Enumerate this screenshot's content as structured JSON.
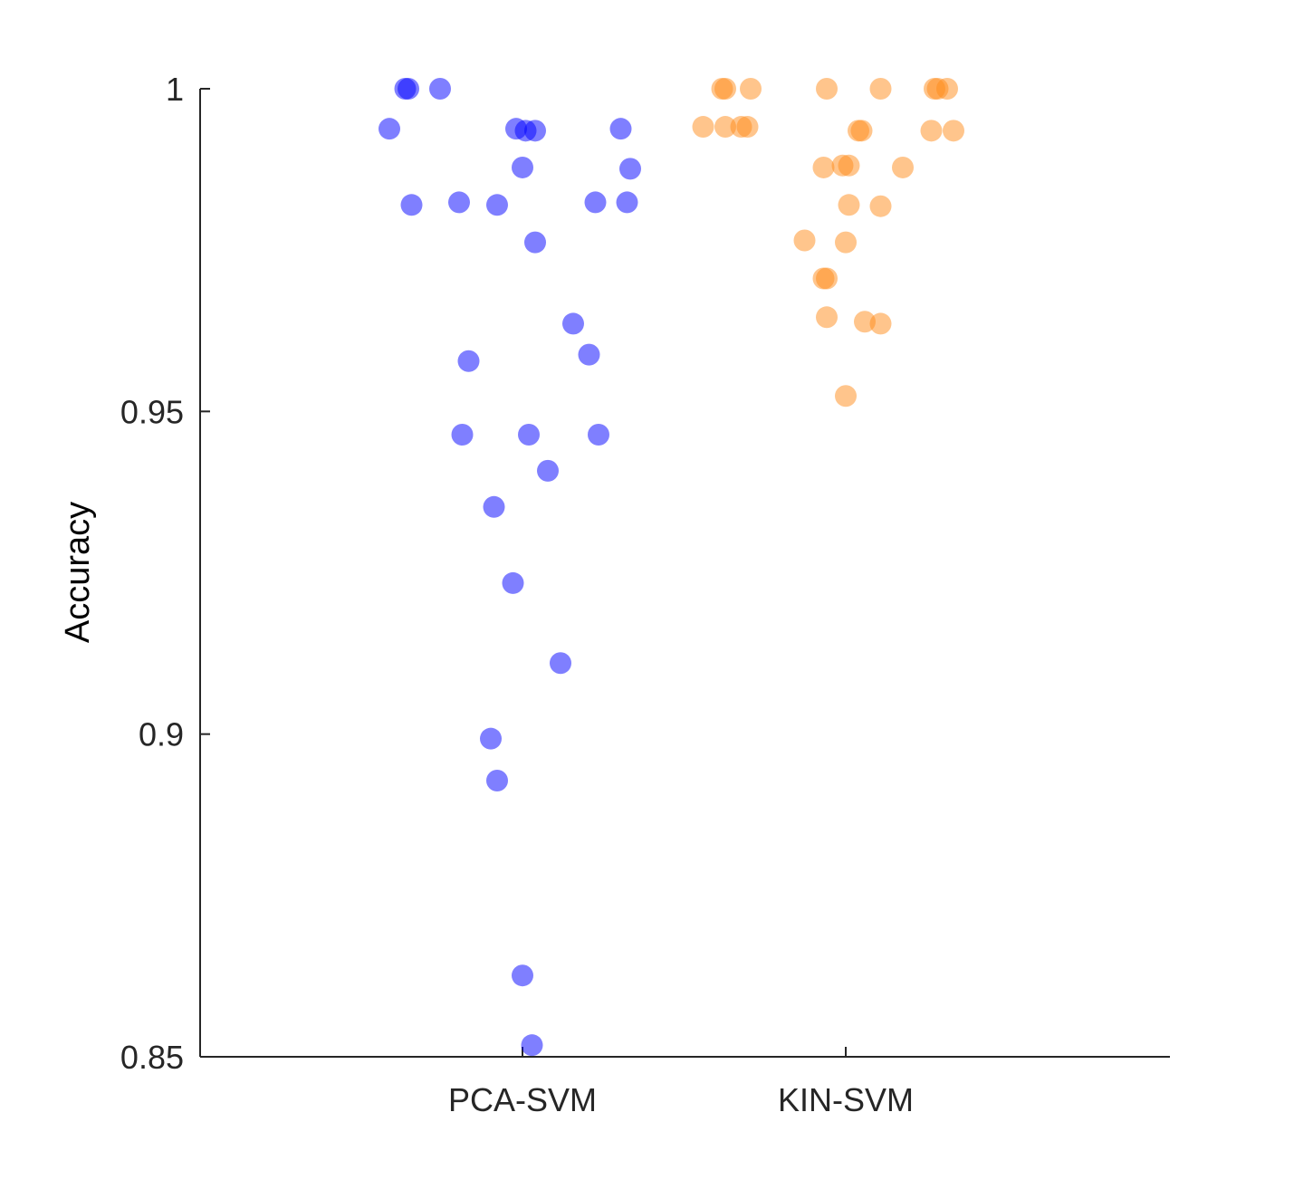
{
  "chart_data": {
    "type": "scatter",
    "title": "",
    "xlabel": "",
    "ylabel": "Accuracy",
    "categories": [
      "PCA-SVM",
      "KIN-SVM"
    ],
    "ylim": [
      0.85,
      1.0
    ],
    "yticks": [
      0.85,
      0.9,
      0.95,
      1
    ],
    "ytick_labels": [
      "0.85",
      "0.9",
      "0.95",
      "1"
    ],
    "grid": false,
    "legend": "none",
    "series": [
      {
        "category": "PCA-SVM",
        "color": "#0000ff",
        "points": [
          {
            "jitter": -0.37,
            "y": 1.0
          },
          {
            "jitter": -0.36,
            "y": 1.0
          },
          {
            "jitter": -0.26,
            "y": 1.0
          },
          {
            "jitter": -0.42,
            "y": 0.9938
          },
          {
            "jitter": -0.02,
            "y": 0.9938
          },
          {
            "jitter": 0.01,
            "y": 0.9935
          },
          {
            "jitter": 0.04,
            "y": 0.9935
          },
          {
            "jitter": 0.31,
            "y": 0.9938
          },
          {
            "jitter": 0.0,
            "y": 0.9878
          },
          {
            "jitter": 0.34,
            "y": 0.9876
          },
          {
            "jitter": -0.35,
            "y": 0.982
          },
          {
            "jitter": -0.2,
            "y": 0.9824
          },
          {
            "jitter": -0.08,
            "y": 0.982
          },
          {
            "jitter": 0.23,
            "y": 0.9824
          },
          {
            "jitter": 0.33,
            "y": 0.9824
          },
          {
            "jitter": 0.04,
            "y": 0.9762
          },
          {
            "jitter": 0.16,
            "y": 0.9636
          },
          {
            "jitter": 0.21,
            "y": 0.9588
          },
          {
            "jitter": -0.17,
            "y": 0.9578
          },
          {
            "jitter": -0.19,
            "y": 0.9464
          },
          {
            "jitter": 0.02,
            "y": 0.9464
          },
          {
            "jitter": 0.24,
            "y": 0.9464
          },
          {
            "jitter": 0.08,
            "y": 0.9408
          },
          {
            "jitter": -0.09,
            "y": 0.9352
          },
          {
            "jitter": -0.03,
            "y": 0.9234
          },
          {
            "jitter": 0.12,
            "y": 0.911
          },
          {
            "jitter": -0.1,
            "y": 0.8993
          },
          {
            "jitter": -0.08,
            "y": 0.8928
          },
          {
            "jitter": 0.0,
            "y": 0.8626
          },
          {
            "jitter": 0.03,
            "y": 0.8518
          }
        ]
      },
      {
        "category": "KIN-SVM",
        "color": "#ff8c1a",
        "points": [
          {
            "jitter": -0.39,
            "y": 1.0
          },
          {
            "jitter": -0.38,
            "y": 1.0
          },
          {
            "jitter": -0.3,
            "y": 1.0
          },
          {
            "jitter": -0.06,
            "y": 1.0
          },
          {
            "jitter": 0.11,
            "y": 1.0
          },
          {
            "jitter": 0.28,
            "y": 1.0
          },
          {
            "jitter": 0.29,
            "y": 1.0
          },
          {
            "jitter": 0.32,
            "y": 1.0
          },
          {
            "jitter": -0.45,
            "y": 0.9941
          },
          {
            "jitter": -0.38,
            "y": 0.9941
          },
          {
            "jitter": -0.33,
            "y": 0.9941
          },
          {
            "jitter": -0.31,
            "y": 0.9941
          },
          {
            "jitter": 0.04,
            "y": 0.9935
          },
          {
            "jitter": 0.05,
            "y": 0.9935
          },
          {
            "jitter": 0.27,
            "y": 0.9935
          },
          {
            "jitter": 0.34,
            "y": 0.9935
          },
          {
            "jitter": -0.07,
            "y": 0.9878
          },
          {
            "jitter": -0.01,
            "y": 0.9881
          },
          {
            "jitter": 0.01,
            "y": 0.9881
          },
          {
            "jitter": 0.18,
            "y": 0.9878
          },
          {
            "jitter": 0.01,
            "y": 0.982
          },
          {
            "jitter": 0.11,
            "y": 0.9818
          },
          {
            "jitter": -0.13,
            "y": 0.9765
          },
          {
            "jitter": 0.0,
            "y": 0.9762
          },
          {
            "jitter": -0.07,
            "y": 0.9706
          },
          {
            "jitter": -0.06,
            "y": 0.9706
          },
          {
            "jitter": -0.06,
            "y": 0.9646
          },
          {
            "jitter": 0.06,
            "y": 0.9639
          },
          {
            "jitter": 0.11,
            "y": 0.9636
          },
          {
            "jitter": 0.0,
            "y": 0.9524
          }
        ]
      }
    ]
  }
}
